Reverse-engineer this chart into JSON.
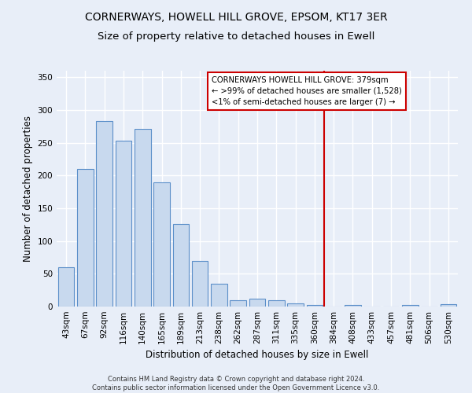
{
  "title": "CORNERWAYS, HOWELL HILL GROVE, EPSOM, KT17 3ER",
  "subtitle": "Size of property relative to detached houses in Ewell",
  "xlabel": "Distribution of detached houses by size in Ewell",
  "ylabel": "Number of detached properties",
  "categories": [
    "43sqm",
    "67sqm",
    "92sqm",
    "116sqm",
    "140sqm",
    "165sqm",
    "189sqm",
    "213sqm",
    "238sqm",
    "262sqm",
    "287sqm",
    "311sqm",
    "335sqm",
    "360sqm",
    "384sqm",
    "408sqm",
    "433sqm",
    "457sqm",
    "481sqm",
    "506sqm",
    "530sqm"
  ],
  "values": [
    60,
    210,
    283,
    253,
    271,
    190,
    126,
    70,
    35,
    10,
    12,
    10,
    5,
    3,
    0,
    3,
    0,
    0,
    3,
    0,
    4
  ],
  "bar_color": "#c8d9ee",
  "bar_edge_color": "#5b8fc9",
  "background_color": "#e8eef8",
  "grid_color": "#ffffff",
  "ylim": [
    0,
    360
  ],
  "yticks": [
    0,
    50,
    100,
    150,
    200,
    250,
    300,
    350
  ],
  "red_line_index": 13,
  "red_line_color": "#cc0000",
  "annotation_text": "CORNERWAYS HOWELL HILL GROVE: 379sqm\n← >99% of detached houses are smaller (1,528)\n<1% of semi-detached houses are larger (7) →",
  "title_fontsize": 10,
  "subtitle_fontsize": 9.5,
  "axis_label_fontsize": 8.5,
  "tick_fontsize": 7.5,
  "footer_text": "Contains HM Land Registry data © Crown copyright and database right 2024.\nContains public sector information licensed under the Open Government Licence v3.0."
}
